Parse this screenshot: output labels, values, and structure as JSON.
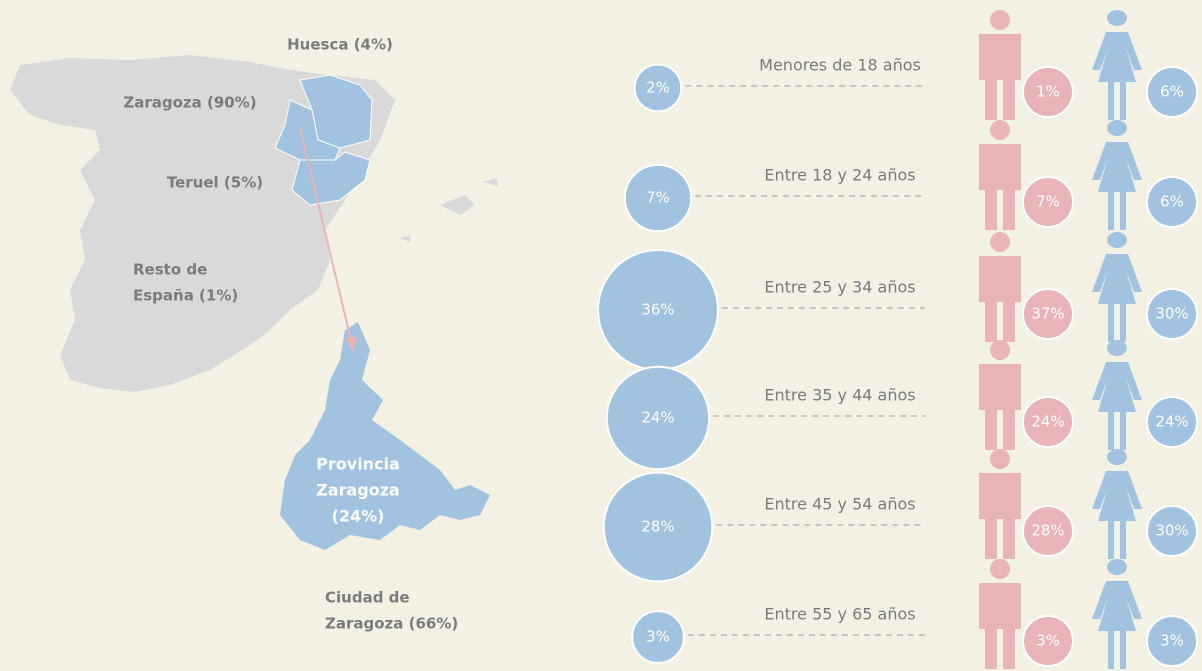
{
  "map": {
    "labels": [
      {
        "lines": [
          "Huesca (4%)"
        ]
      },
      {
        "lines": [
          "Zaragoza (90%)"
        ]
      },
      {
        "lines": [
          "Teruel (5%)"
        ]
      },
      {
        "lines": [
          "Resto de",
          "España (1%)"
        ]
      },
      {
        "lines": [
          "Provincia",
          "Zaragoza",
          "(24%)"
        ]
      },
      {
        "lines": [
          "Ciudad de",
          "Zaragoza (66%)"
        ]
      }
    ]
  },
  "age_groups": [
    {
      "label": "Menores de 18 años",
      "total": 2,
      "total_label": "2%",
      "men": "1%",
      "women": "6%"
    },
    {
      "label": "Entre 18 y 24 años",
      "total": 7,
      "total_label": "7%",
      "men": "7%",
      "women": "6%"
    },
    {
      "label": "Entre 25 y 34 años",
      "total": 36,
      "total_label": "36%",
      "men": "37%",
      "women": "30%"
    },
    {
      "label": "Entre 35 y 44 años",
      "total": 24,
      "total_label": "24%",
      "men": "24%",
      "women": "24%"
    },
    {
      "label": "Entre 45 y 54 años",
      "total": 28,
      "total_label": "28%",
      "men": "28%",
      "women": "30%"
    },
    {
      "label": "Entre 55 y 65 años",
      "total": 3,
      "total_label": "3%",
      "men": "3%",
      "women": "3%"
    }
  ]
}
